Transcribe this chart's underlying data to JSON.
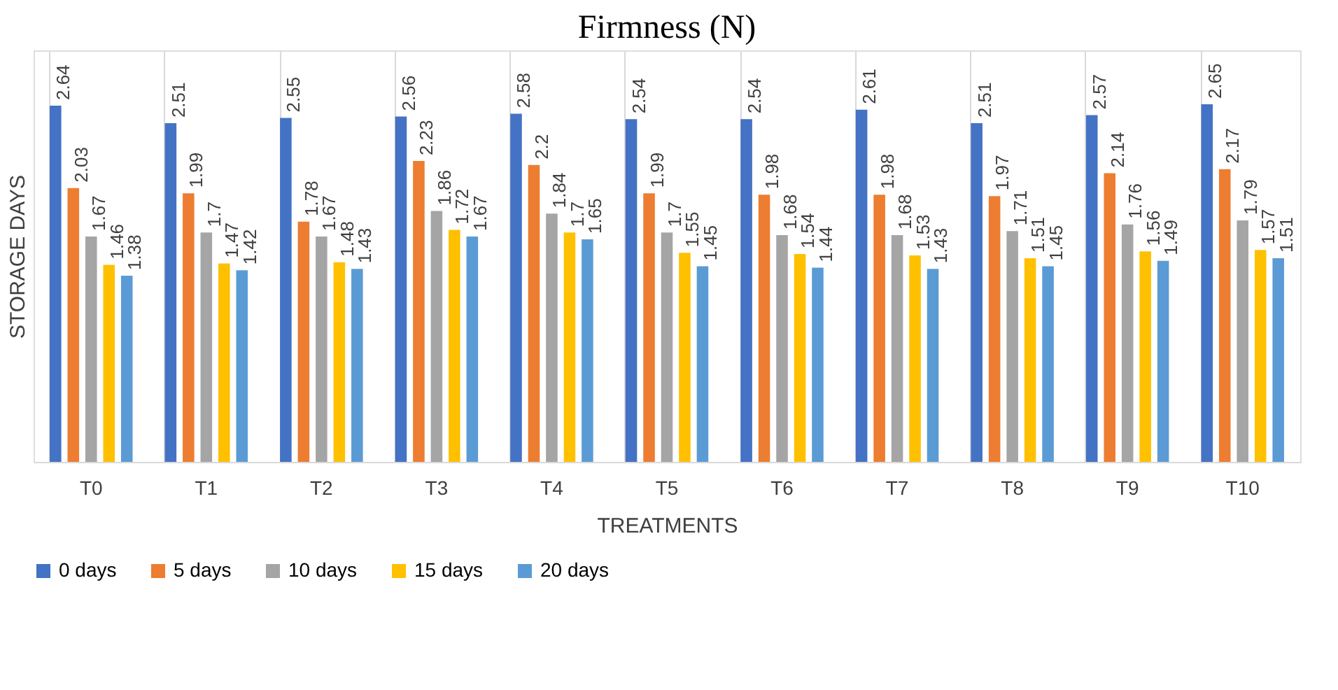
{
  "chart_data": {
    "type": "bar",
    "title": "Firmness (N)",
    "xlabel": "TREATMENTS",
    "ylabel": "STORAGE DAYS",
    "categories": [
      "T0",
      "T1",
      "T2",
      "T3",
      "T4",
      "T5",
      "T6",
      "T7",
      "T8",
      "T9",
      "T10"
    ],
    "series": [
      {
        "name": "0 days",
        "color": "#4472c4",
        "values": [
          2.64,
          2.51,
          2.55,
          2.56,
          2.58,
          2.54,
          2.54,
          2.61,
          2.51,
          2.57,
          2.65
        ]
      },
      {
        "name": "5 days",
        "color": "#ed7d31",
        "values": [
          2.03,
          1.99,
          1.78,
          2.23,
          2.2,
          1.99,
          1.98,
          1.98,
          1.97,
          2.14,
          2.17
        ]
      },
      {
        "name": "10 days",
        "color": "#a5a5a5",
        "values": [
          1.67,
          1.7,
          1.67,
          1.86,
          1.84,
          1.7,
          1.68,
          1.68,
          1.71,
          1.76,
          1.79
        ]
      },
      {
        "name": "15 days",
        "color": "#ffc000",
        "values": [
          1.46,
          1.47,
          1.48,
          1.72,
          1.7,
          1.55,
          1.54,
          1.53,
          1.51,
          1.56,
          1.57
        ]
      },
      {
        "name": "20 days",
        "color": "#5b9bd5",
        "values": [
          1.38,
          1.42,
          1.43,
          1.67,
          1.65,
          1.45,
          1.44,
          1.43,
          1.45,
          1.49,
          1.51
        ]
      }
    ],
    "ylim": [
      0,
      3.05
    ],
    "tick_labels": "x",
    "grid": "x",
    "legend": "bottom",
    "data_labels": true
  }
}
